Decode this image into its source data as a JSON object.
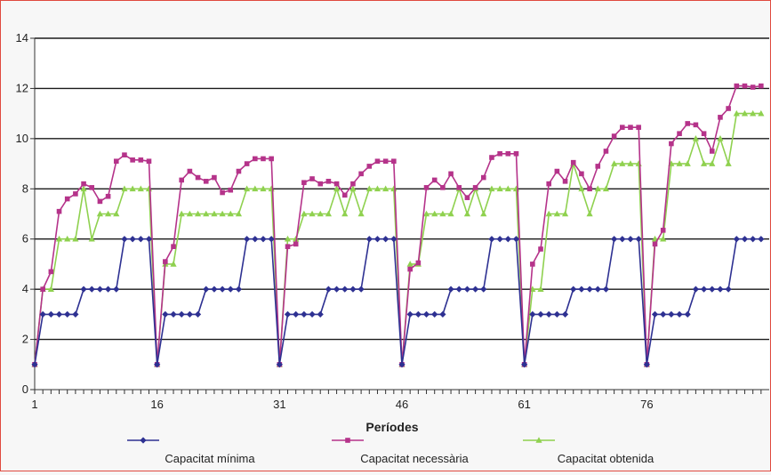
{
  "chart_data": {
    "type": "line",
    "xlabel": "Períodes",
    "ylabel": "",
    "ylim": [
      0,
      14
    ],
    "yticks": [
      0,
      2,
      4,
      6,
      8,
      10,
      12,
      14
    ],
    "xtick_labels": [
      "1",
      "16",
      "31",
      "46",
      "61",
      "76"
    ],
    "x": [
      1,
      2,
      3,
      4,
      5,
      6,
      7,
      8,
      9,
      10,
      11,
      12,
      13,
      14,
      15,
      16,
      17,
      18,
      19,
      20,
      21,
      22,
      23,
      24,
      25,
      26,
      27,
      28,
      29,
      30,
      31,
      32,
      33,
      34,
      35,
      36,
      37,
      38,
      39,
      40,
      41,
      42,
      43,
      44,
      45,
      46,
      47,
      48,
      49,
      50,
      51,
      52,
      53,
      54,
      55,
      56,
      57,
      58,
      59,
      60,
      61,
      62,
      63,
      64,
      65,
      66,
      67,
      68,
      69,
      70,
      71,
      72,
      73,
      74,
      75,
      76,
      77,
      78,
      79,
      80,
      81,
      82,
      83,
      84,
      85,
      86,
      87,
      88,
      89,
      90
    ],
    "grid": "horizontal",
    "legend_position": "bottom",
    "series": [
      {
        "name": "Capacitat mínima",
        "color": "#2e3192",
        "marker": "diamond",
        "values": [
          1,
          3,
          3,
          3,
          3,
          3,
          4,
          4,
          4,
          4,
          4,
          6,
          6,
          6,
          6,
          1,
          3,
          3,
          3,
          3,
          3,
          4,
          4,
          4,
          4,
          4,
          6,
          6,
          6,
          6,
          1,
          3,
          3,
          3,
          3,
          3,
          4,
          4,
          4,
          4,
          4,
          6,
          6,
          6,
          6,
          1,
          3,
          3,
          3,
          3,
          3,
          4,
          4,
          4,
          4,
          4,
          6,
          6,
          6,
          6,
          1,
          3,
          3,
          3,
          3,
          3,
          4,
          4,
          4,
          4,
          4,
          6,
          6,
          6,
          6,
          1,
          3,
          3,
          3,
          3,
          3,
          4,
          4,
          4,
          4,
          4,
          6,
          6,
          6,
          6
        ]
      },
      {
        "name": "Capacitat necessària",
        "color": "#b5338a",
        "marker": "square",
        "values": [
          1,
          4,
          4.7,
          7.1,
          7.6,
          7.8,
          8.2,
          8.05,
          7.5,
          7.7,
          9.1,
          9.35,
          9.15,
          9.15,
          9.1,
          1,
          5.1,
          5.7,
          8.35,
          8.7,
          8.45,
          8.3,
          8.45,
          7.85,
          7.95,
          8.7,
          9.0,
          9.2,
          9.2,
          9.2,
          1,
          5.7,
          5.8,
          8.25,
          8.4,
          8.2,
          8.3,
          8.2,
          7.75,
          8.2,
          8.6,
          8.9,
          9.1,
          9.1,
          9.1,
          1,
          4.8,
          5.05,
          8.05,
          8.35,
          8.05,
          8.6,
          8.05,
          7.65,
          8.05,
          8.45,
          9.25,
          9.4,
          9.4,
          9.4,
          1,
          5.0,
          5.6,
          8.2,
          8.7,
          8.3,
          9.05,
          8.6,
          8.0,
          8.9,
          9.5,
          10.1,
          10.45,
          10.45,
          10.45,
          1,
          5.8,
          6.35,
          9.8,
          10.2,
          10.6,
          10.55,
          10.2,
          9.5,
          10.85,
          11.2,
          12.1,
          12.1,
          12.05,
          12.1
        ]
      },
      {
        "name": "Capacitat obtenida",
        "color": "#8fd14f",
        "marker": "triangle",
        "values": [
          1,
          4,
          4,
          6,
          6,
          6,
          8,
          6,
          7,
          7,
          7,
          8,
          8,
          8,
          8,
          1,
          5,
          5,
          7,
          7,
          7,
          7,
          7,
          7,
          7,
          7,
          8,
          8,
          8,
          8,
          1,
          6,
          6,
          7,
          7,
          7,
          7,
          8,
          7,
          8,
          7,
          8,
          8,
          8,
          8,
          1,
          5,
          5,
          7,
          7,
          7,
          7,
          8,
          7,
          8,
          7,
          8,
          8,
          8,
          8,
          1,
          4,
          4,
          7,
          7,
          7,
          9,
          8,
          7,
          8,
          8,
          9,
          9,
          9,
          9,
          1,
          6,
          6,
          9,
          9,
          9,
          10,
          9,
          9,
          10,
          9,
          11,
          11,
          11,
          11
        ]
      }
    ]
  }
}
